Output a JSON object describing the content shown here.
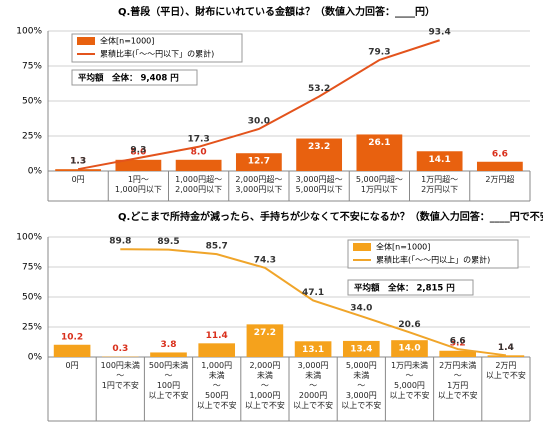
{
  "chart_data": [
    {
      "type": "bar",
      "title": "Q.普段（平日）、財布にいれている金額は？（数値入力回答：____円）",
      "annotation": "平均額　全体：  9,408 円",
      "categories": [
        "0円",
        "1円～\n1,000円以下",
        "1,000円超～\n2,000円以下",
        "2,000円超～\n3,000円以下",
        "3,000円超～\n5,000円以下",
        "5,000円超～\n1万円以下",
        "1万円超～\n2万円以下",
        "2万円超"
      ],
      "series": [
        {
          "name": "全体[n=1000]",
          "type": "bar",
          "color": "#e8610f",
          "values": [
            1.3,
            8.0,
            8.0,
            12.7,
            23.2,
            26.1,
            14.1,
            6.6
          ],
          "value_labels": [
            "1.3",
            "8.0",
            "8.0",
            "12.7",
            "23.2",
            "26.1",
            "14.1",
            "6.6"
          ]
        },
        {
          "name": "累積比率(「～～円以下」の累計)",
          "type": "line",
          "color": "#e3531c",
          "values": [
            1.3,
            9.3,
            17.3,
            30.0,
            53.2,
            79.3,
            93.4,
            null
          ],
          "value_labels": [
            "1.3",
            "9.3",
            "17.3",
            "30.0",
            "53.2",
            "79.3",
            "93.4",
            null
          ]
        }
      ],
      "ylim": [
        0,
        100
      ],
      "yticks": [
        {
          "value": 0,
          "label": "0%"
        },
        {
          "value": 25,
          "label": "25%"
        },
        {
          "value": 50,
          "label": "50%"
        },
        {
          "value": 75,
          "label": "75%"
        },
        {
          "value": 100,
          "label": "100%"
        }
      ],
      "grid": true
    },
    {
      "type": "bar",
      "title": "Q.どこまで所持金が減ったら、手持ちが少なくて不安になるか？（数値入力回答：____円で不安）",
      "annotation": "平均額　全体：  2,815 円",
      "categories": [
        "0円",
        "100円未満\n～\n1円で不安",
        "500円未満\n～\n100円\n以上で不安",
        "1,000円\n未満\n～\n500円\n以上で不安",
        "2,000円\n未満\n～\n1,000円\n以上で不安",
        "3,000円\n未満\n～\n2000円\n以上で不安",
        "5,000円\n未満\n～\n3,000円\n以上で不安",
        "1万円未満\n～\n5,000円\n以上で不安",
        "2万円未満\n～\n1万円\n以上で不安",
        "2万円\n以上で不安"
      ],
      "series": [
        {
          "name": "全体[n=1000]",
          "type": "bar",
          "color": "#f5a21c",
          "values": [
            10.2,
            0.3,
            3.8,
            11.4,
            27.2,
            13.1,
            13.4,
            14.0,
            5.2,
            1.4
          ],
          "value_labels": [
            "10.2",
            "0.3",
            "3.8",
            "11.4",
            "27.2",
            "13.1",
            "13.4",
            "14.0",
            "5.2",
            "1.4"
          ]
        },
        {
          "name": "累積比率(「～～円以上」の累計)",
          "type": "line",
          "color": "#f0a52a",
          "values": [
            null,
            89.8,
            89.5,
            85.7,
            74.3,
            47.1,
            34.0,
            20.6,
            6.6,
            1.4
          ],
          "value_labels": [
            null,
            "89.8",
            "89.5",
            "85.7",
            "74.3",
            "47.1",
            "34.0",
            "20.6",
            "6.6",
            "1.4"
          ]
        }
      ],
      "ylim": [
        0,
        100
      ],
      "yticks": [
        {
          "value": 0,
          "label": "0%"
        },
        {
          "value": 25,
          "label": "25%"
        },
        {
          "value": 50,
          "label": "50%"
        },
        {
          "value": 75,
          "label": "75%"
        },
        {
          "value": 100,
          "label": "100%"
        }
      ],
      "grid": true
    }
  ]
}
